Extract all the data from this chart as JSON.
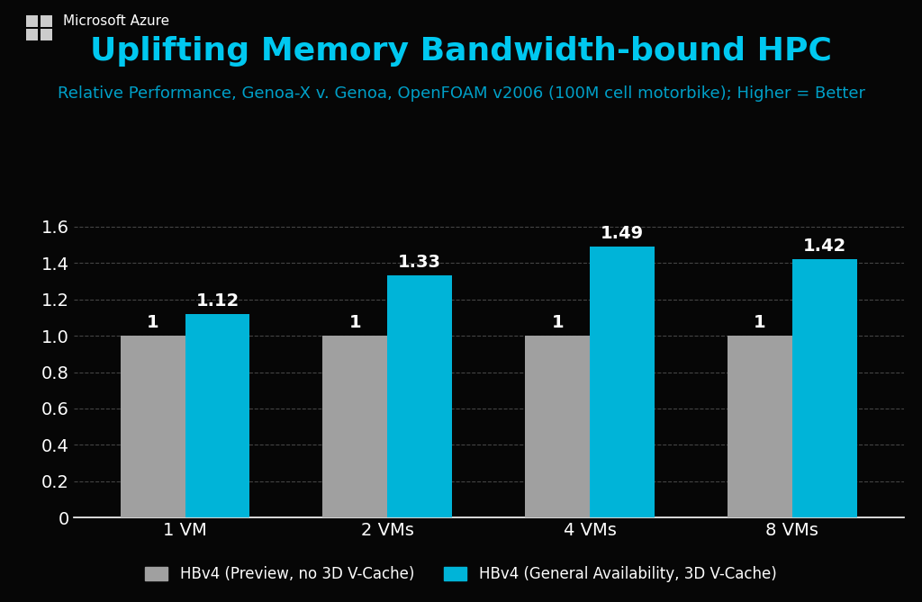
{
  "title": "Uplifting Memory Bandwidth-bound HPC",
  "subtitle": "Relative Performance, Genoa-X v. Genoa, OpenFOAM v2006 (100M cell motorbike); Higher = Better",
  "categories": [
    "1 VM",
    "2 VMs",
    "4 VMs",
    "8 VMs"
  ],
  "preview_values": [
    1,
    1,
    1,
    1
  ],
  "ga_values": [
    1.12,
    1.33,
    1.49,
    1.42
  ],
  "preview_labels": [
    "1",
    "1",
    "1",
    "1"
  ],
  "ga_labels": [
    "1.12",
    "1.33",
    "1.49",
    "1.42"
  ],
  "preview_color": "#a0a0a0",
  "ga_color": "#00b4d8",
  "background_color": "#060606",
  "title_color": "#00c8f0",
  "subtitle_color": "#00a0c8",
  "text_color": "#ffffff",
  "grid_color": "#444444",
  "title_fontsize": 26,
  "subtitle_fontsize": 13,
  "tick_fontsize": 14,
  "label_fontsize": 14,
  "legend_fontsize": 12,
  "ylim": [
    0,
    1.72
  ],
  "yticks": [
    0,
    0.2,
    0.4,
    0.6,
    0.8,
    1.0,
    1.2,
    1.4,
    1.6
  ],
  "bar_width": 0.32,
  "legend_preview": "HBv4 (Preview, no 3D V-Cache)",
  "legend_ga": "HBv4 (General Availability, 3D V-Cache)",
  "logo_color": "#cccccc",
  "azure_text": "Microsoft Azure"
}
